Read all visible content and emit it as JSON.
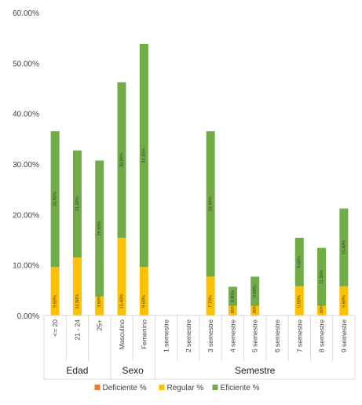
{
  "chart_data": {
    "type": "bar",
    "stacked": true,
    "categories": [
      "<= 20",
      "21 - 24",
      "25+",
      "Masculino",
      "Femenino",
      "1 semestre",
      "2 semestre",
      "3 semestre",
      "4 semestre",
      "5 semestre",
      "6 semestre",
      "7 semestre",
      "8 semestre",
      "9 semestre"
    ],
    "groups": [
      {
        "name": "Edad",
        "count": 3
      },
      {
        "name": "Sexo",
        "count": 2
      },
      {
        "name": "Semestre",
        "count": 9
      }
    ],
    "series": [
      {
        "name": "Deficiente %",
        "color": "#ED7D31",
        "values": [
          0,
          0,
          0,
          0,
          0,
          0,
          0,
          0,
          0,
          0,
          0,
          0,
          0,
          0
        ],
        "labels": [
          "",
          "",
          "",
          "",
          "",
          "",
          "",
          "",
          "",
          "",
          "",
          "",
          "",
          ""
        ]
      },
      {
        "name": "Regular %",
        "color": "#FFC000",
        "values": [
          9.6,
          11.5,
          3.8,
          15.4,
          9.6,
          0,
          0,
          7.7,
          1.9,
          1.9,
          0,
          5.8,
          1.9,
          5.8
        ],
        "labels": [
          "9.60%",
          "11.50%",
          "3.80%",
          "15.40%",
          "9.60%",
          "",
          "",
          "7.70%",
          "1.90%",
          "1.90%",
          "",
          "5.80%",
          "1.90%",
          "5.80%"
        ]
      },
      {
        "name": "Eficiente %",
        "color": "#70AD47",
        "values": [
          26.9,
          21.2,
          26.9,
          30.8,
          44.2,
          0,
          0,
          28.8,
          3.8,
          5.8,
          0,
          9.6,
          11.5,
          15.4
        ],
        "labels": [
          "26.90%",
          "21.20%",
          "26.90%",
          "30.80%",
          "44.20%",
          "",
          "",
          "28.80%",
          "3.80%",
          "5.80%",
          "",
          "9.60%",
          "11.50%",
          "15.40%"
        ]
      }
    ],
    "ylim": [
      0,
      60
    ],
    "yticks": [
      "0.00%",
      "10.00%",
      "20.00%",
      "30.00%",
      "40.00%",
      "50.00%",
      "60.00%"
    ],
    "grid": false,
    "legend_position": "bottom"
  }
}
